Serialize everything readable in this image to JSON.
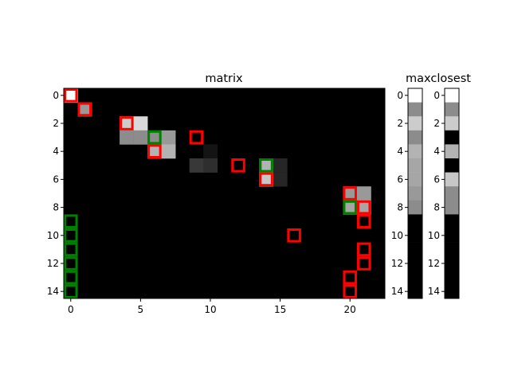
{
  "chart_data": [
    {
      "type": "heatmap",
      "title": "matrix",
      "colormap": "gray",
      "n_rows": 15,
      "n_cols": 23,
      "background_value": 0.0,
      "cells": [
        {
          "row": 0,
          "col": 0,
          "value": 1.0
        },
        {
          "row": 1,
          "col": 1,
          "value": 0.6
        },
        {
          "row": 2,
          "col": 4,
          "value": 0.8
        },
        {
          "row": 2,
          "col": 5,
          "value": 0.85
        },
        {
          "row": 3,
          "col": 4,
          "value": 0.55
        },
        {
          "row": 3,
          "col": 5,
          "value": 0.55
        },
        {
          "row": 3,
          "col": 6,
          "value": 0.55
        },
        {
          "row": 3,
          "col": 7,
          "value": 0.6
        },
        {
          "row": 4,
          "col": 6,
          "value": 0.7
        },
        {
          "row": 4,
          "col": 7,
          "value": 0.7
        },
        {
          "row": 4,
          "col": 10,
          "value": 0.08
        },
        {
          "row": 5,
          "col": 9,
          "value": 0.22
        },
        {
          "row": 5,
          "col": 10,
          "value": 0.18
        },
        {
          "row": 5,
          "col": 14,
          "value": 0.7
        },
        {
          "row": 5,
          "col": 15,
          "value": 0.15
        },
        {
          "row": 6,
          "col": 14,
          "value": 0.78
        },
        {
          "row": 6,
          "col": 15,
          "value": 0.15
        },
        {
          "row": 7,
          "col": 20,
          "value": 0.6
        },
        {
          "row": 7,
          "col": 21,
          "value": 0.6
        },
        {
          "row": 8,
          "col": 20,
          "value": 0.65
        },
        {
          "row": 8,
          "col": 21,
          "value": 0.65
        }
      ],
      "red_boxes": [
        [
          0,
          0
        ],
        [
          1,
          1
        ],
        [
          2,
          4
        ],
        [
          3,
          9
        ],
        [
          4,
          6
        ],
        [
          5,
          12
        ],
        [
          6,
          14
        ],
        [
          7,
          20
        ],
        [
          8,
          21
        ],
        [
          9,
          21
        ],
        [
          10,
          16
        ],
        [
          11,
          21
        ],
        [
          12,
          21
        ],
        [
          13,
          20
        ],
        [
          14,
          20
        ]
      ],
      "green_boxes": [
        [
          3,
          6
        ],
        [
          5,
          14
        ],
        [
          8,
          20
        ],
        [
          9,
          0
        ],
        [
          10,
          0
        ],
        [
          11,
          0
        ],
        [
          12,
          0
        ],
        [
          13,
          0
        ],
        [
          14,
          0
        ]
      ],
      "xticks": [
        "0",
        "5",
        "10",
        "15",
        "20"
      ],
      "yticks": [
        "0",
        "2",
        "4",
        "6",
        "8",
        "10",
        "12",
        "14"
      ]
    },
    {
      "type": "heatmap",
      "title": "",
      "colormap": "gray",
      "n_rows": 15,
      "n_cols": 1,
      "values": [
        1.0,
        0.55,
        0.8,
        0.55,
        0.7,
        0.65,
        0.65,
        0.6,
        0.55,
        0.0,
        0.0,
        0.0,
        0.0,
        0.0,
        0.0
      ],
      "yticks": [
        "0",
        "2",
        "4",
        "6",
        "8",
        "10",
        "12",
        "14"
      ]
    },
    {
      "type": "heatmap",
      "title": "maxclosest",
      "colormap": "gray",
      "n_rows": 15,
      "n_cols": 1,
      "values": [
        1.0,
        0.55,
        0.8,
        0.0,
        0.7,
        0.0,
        0.78,
        0.55,
        0.55,
        0.0,
        0.0,
        0.0,
        0.0,
        0.0,
        0.0
      ],
      "yticks": [
        "0",
        "2",
        "4",
        "6",
        "8",
        "10",
        "12",
        "14"
      ]
    }
  ],
  "colors": {
    "red_box": "#ff0000",
    "green_box": "#008000",
    "background": "#000000"
  }
}
